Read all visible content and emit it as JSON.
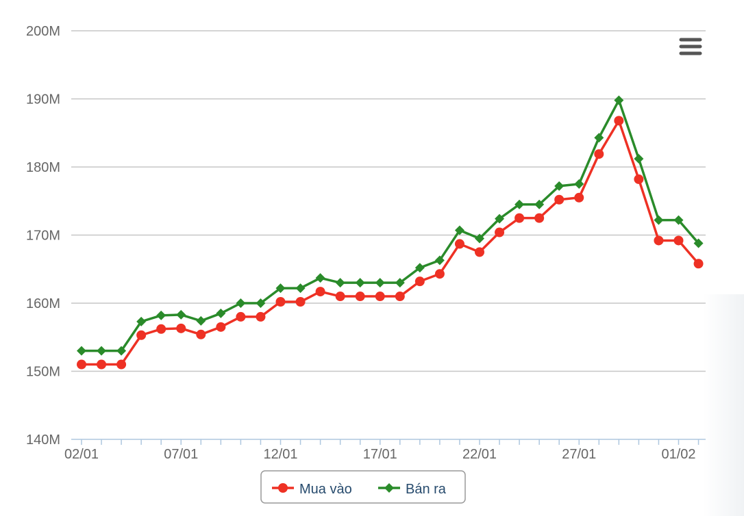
{
  "chart_data": {
    "type": "line",
    "categories": [
      "02/01",
      "03/01",
      "04/01",
      "05/01",
      "06/01",
      "07/01",
      "08/01",
      "09/01",
      "10/01",
      "11/01",
      "12/01",
      "13/01",
      "14/01",
      "15/01",
      "16/01",
      "17/01",
      "18/01",
      "19/01",
      "20/01",
      "21/01",
      "22/01",
      "23/01",
      "24/01",
      "25/01",
      "26/01",
      "27/01",
      "28/01",
      "29/01",
      "30/01",
      "31/01",
      "01/02",
      "02/02"
    ],
    "tick_labels": [
      "02/01",
      "07/01",
      "12/01",
      "17/01",
      "22/01",
      "27/01",
      "01/02"
    ],
    "y_ticks": [
      "140M",
      "150M",
      "160M",
      "170M",
      "180M",
      "190M",
      "200M"
    ],
    "ylim": [
      140000000,
      200000000
    ],
    "grid": true,
    "legend_position": "bottom-center",
    "series": [
      {
        "name": "Mua vào",
        "color": "#ee3124",
        "marker": "circle",
        "values": [
          151000000,
          151000000,
          151000000,
          155300000,
          156200000,
          156300000,
          155400000,
          156500000,
          158000000,
          158000000,
          160200000,
          160200000,
          161700000,
          161000000,
          161000000,
          161000000,
          161000000,
          163200000,
          164300000,
          168700000,
          167500000,
          170400000,
          172500000,
          172500000,
          175200000,
          175500000,
          181900000,
          186800000,
          178200000,
          169200000,
          169200000,
          165800000
        ]
      },
      {
        "name": "Bán ra",
        "color": "#2a8b2a",
        "marker": "diamond",
        "values": [
          153000000,
          153000000,
          153000000,
          157300000,
          158200000,
          158300000,
          157400000,
          158500000,
          160000000,
          160000000,
          162200000,
          162200000,
          163700000,
          163000000,
          163000000,
          163000000,
          163000000,
          165200000,
          166300000,
          170700000,
          169500000,
          172400000,
          174500000,
          174500000,
          177200000,
          177500000,
          184300000,
          189800000,
          181200000,
          172200000,
          172200000,
          168800000
        ]
      }
    ]
  },
  "icons": {
    "menu": "menu-icon"
  }
}
